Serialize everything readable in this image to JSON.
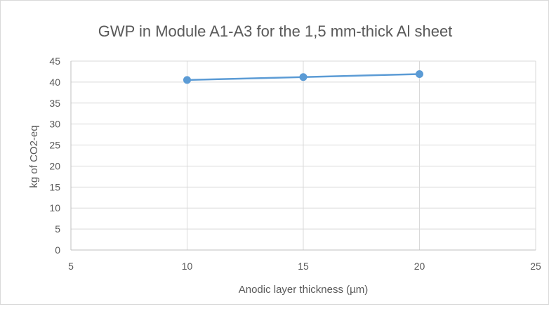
{
  "chart_data": {
    "type": "scatter",
    "title": "GWP in Module A1-A3 for the 1,5 mm-thick Al sheet",
    "xlabel": "Anodic layer thickness (µm)",
    "ylabel": "kg of CO2-eq",
    "xlim": [
      5,
      25
    ],
    "ylim": [
      0,
      45
    ],
    "xticks": [
      5,
      10,
      15,
      20,
      25
    ],
    "yticks": [
      0,
      5,
      10,
      15,
      20,
      25,
      30,
      35,
      40,
      45
    ],
    "grid": true,
    "legend": "none",
    "series": [
      {
        "x": [
          10,
          15,
          20
        ],
        "y": [
          40.5,
          41.2,
          41.9
        ],
        "color": "#5b9bd5",
        "line": true,
        "markers": true
      }
    ]
  }
}
